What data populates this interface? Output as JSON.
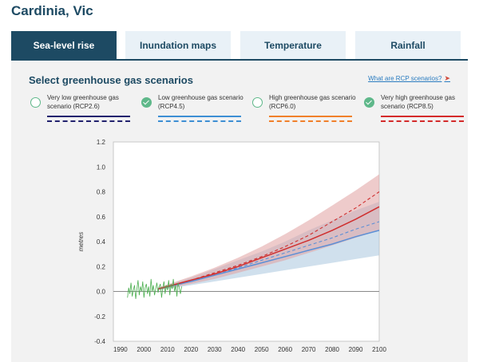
{
  "page": {
    "title": "Cardinia, Vic"
  },
  "tabs": [
    {
      "label": "Sea-level rise",
      "active": true
    },
    {
      "label": "Inundation maps",
      "active": false
    },
    {
      "label": "Temperature",
      "active": false
    },
    {
      "label": "Rainfall",
      "active": false
    }
  ],
  "section": {
    "title": "Select greenhouse gas scenarios",
    "link": "What are RCP scenarios?"
  },
  "scenarios": [
    {
      "label": "Very low greenhouse gas scenario (RCP2.6)",
      "selected": false,
      "color": "#22226e"
    },
    {
      "label": "Low greenhouse gas scenario (RCP4.5)",
      "selected": true,
      "color": "#3d8fd4"
    },
    {
      "label": "High greenhouse gas scenario (RCP6.0)",
      "selected": false,
      "color": "#f0802a"
    },
    {
      "label": "Very high greenhouse gas scenario (RCP8.5)",
      "selected": true,
      "color": "#d42a2a"
    }
  ],
  "chart_data": {
    "type": "line",
    "ylabel": "metres",
    "xlim": [
      1987,
      2100
    ],
    "ylim": [
      -0.4,
      1.2
    ],
    "xticks": [
      "1990",
      "2000",
      "2010",
      "2020",
      "2030",
      "2040",
      "2050",
      "2060",
      "2070",
      "2080",
      "2090",
      "2100"
    ],
    "yticks": [
      "-0.4",
      "-0.2",
      "0.0",
      "0.2",
      "0.4",
      "0.6",
      "0.8",
      "1.0",
      "1.2"
    ],
    "x": [
      2006,
      2020,
      2030,
      2040,
      2050,
      2060,
      2070,
      2080,
      2090,
      2100
    ],
    "series": [
      {
        "scenario": "RCP4.5",
        "color": "#5b8fd6",
        "band_color": "#a9c6df",
        "median": [
          0.02,
          0.08,
          0.13,
          0.18,
          0.23,
          0.28,
          0.33,
          0.38,
          0.44,
          0.49
        ],
        "lower": [
          0.01,
          0.05,
          0.08,
          0.11,
          0.14,
          0.17,
          0.2,
          0.23,
          0.26,
          0.29
        ],
        "upper": [
          0.03,
          0.11,
          0.18,
          0.25,
          0.32,
          0.4,
          0.49,
          0.57,
          0.65,
          0.72
        ],
        "dashed": [
          0.02,
          0.08,
          0.13,
          0.19,
          0.25,
          0.31,
          0.37,
          0.43,
          0.5,
          0.56
        ]
      },
      {
        "scenario": "RCP8.5",
        "color": "#cf2e2e",
        "band_color": "#e0a0a0",
        "median": [
          0.02,
          0.09,
          0.14,
          0.2,
          0.27,
          0.34,
          0.41,
          0.49,
          0.58,
          0.68
        ],
        "lower": [
          0.01,
          0.06,
          0.1,
          0.15,
          0.2,
          0.25,
          0.31,
          0.37,
          0.43,
          0.49
        ],
        "upper": [
          0.03,
          0.12,
          0.19,
          0.27,
          0.36,
          0.46,
          0.57,
          0.69,
          0.81,
          0.94
        ],
        "dashed": [
          0.02,
          0.09,
          0.15,
          0.21,
          0.28,
          0.36,
          0.45,
          0.56,
          0.67,
          0.8
        ]
      }
    ],
    "observed": {
      "color": "#4caf50",
      "x": [
        1993,
        1993.5,
        1994,
        1994.5,
        1995,
        1995.5,
        1996,
        1996.5,
        1997,
        1997.5,
        1998,
        1998.5,
        1999,
        1999.5,
        2000,
        2000.5,
        2001,
        2001.5,
        2002,
        2002.5,
        2003,
        2003.5,
        2004,
        2004.5,
        2005,
        2005.5,
        2006,
        2006.5,
        2007,
        2007.5,
        2008,
        2008.5,
        2009,
        2009.5,
        2010,
        2010.5,
        2011,
        2011.5,
        2012,
        2012.5,
        2013,
        2013.5,
        2014,
        2014.5,
        2015,
        2015.5,
        2016
      ],
      "y": [
        -0.05,
        0.03,
        -0.02,
        0.07,
        -0.04,
        0.01,
        0.05,
        -0.06,
        0.02,
        0.09,
        -0.03,
        0.04,
        0.0,
        0.08,
        -0.05,
        0.03,
        0.06,
        -0.02,
        0.04,
        -0.04,
        0.1,
        0.0,
        0.05,
        -0.03,
        0.02,
        0.07,
        -0.01,
        0.04,
        0.06,
        -0.05,
        0.03,
        0.08,
        -0.02,
        0.05,
        0.01,
        0.09,
        -0.03,
        0.06,
        0.02,
        0.1,
        0.0,
        0.05,
        -0.04,
        0.07,
        0.03,
        -0.02,
        0.04
      ]
    }
  }
}
